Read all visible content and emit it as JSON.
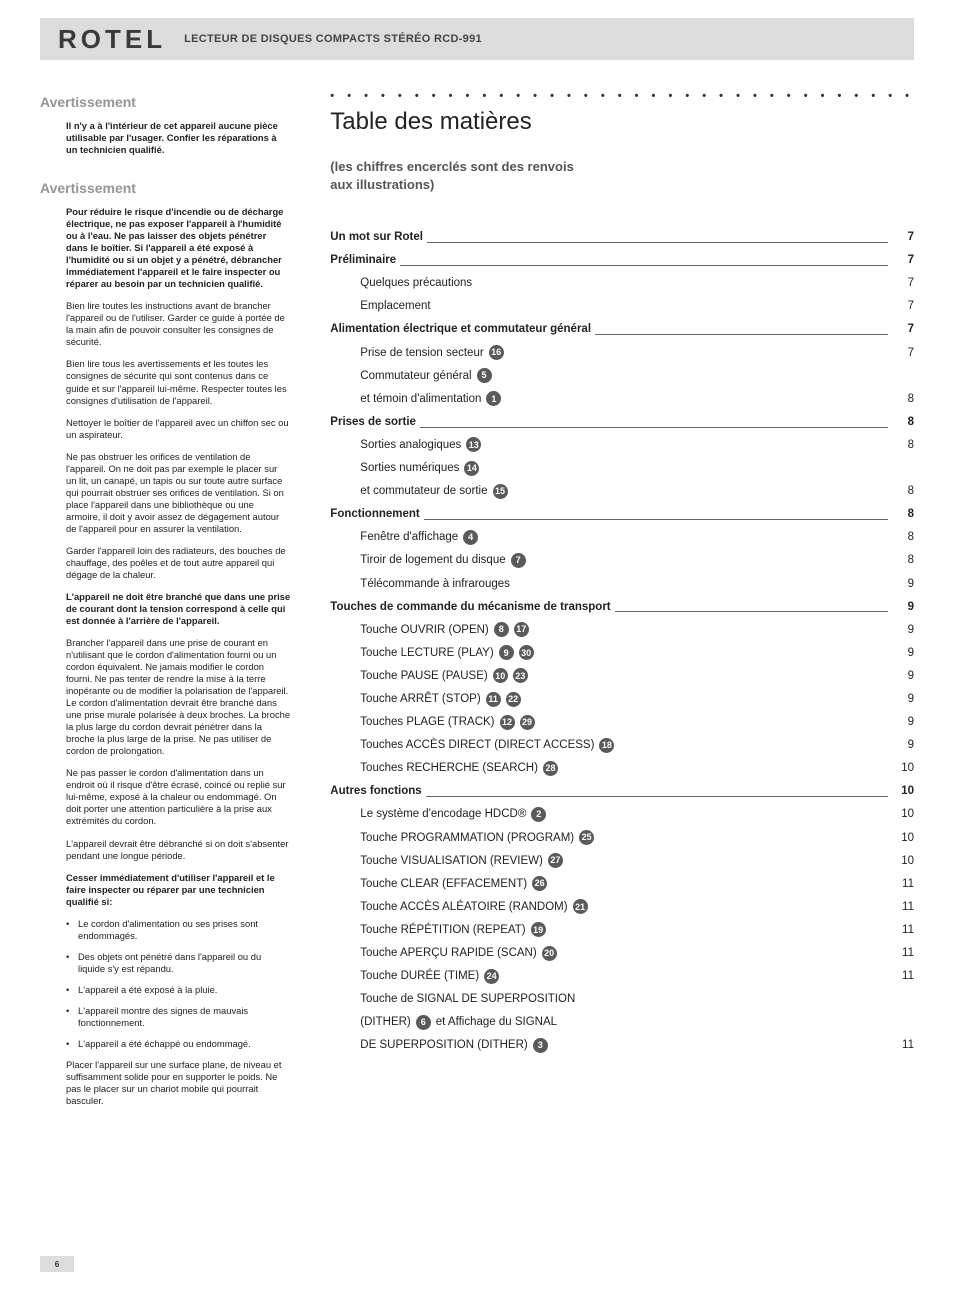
{
  "header": {
    "brand": "ROTEL",
    "subtitle": "LECTEUR DE DISQUES COMPACTS STÉRÉO   RCD-991"
  },
  "left": {
    "warn1_head": "Avertissement",
    "warn1_text": "Il n'y a à l'intérieur de cet appareil aucune pièce utilisable par l'usager. Confier les réparations à un technicien qualifié.",
    "warn2_head": "Avertissement",
    "p1": "Pour réduire le risque d'incendie ou de décharge électrique, ne pas exposer l'appareil à l'humidité ou à l'eau. Ne pas laisser des objets pénétrer dans le boîtier. Si l'appareil a été exposé à l'humidité ou si un objet y a pénétré, débrancher immédiatement l'appareil et le faire inspecter ou réparer au besoin par un technicien qualifié.",
    "p2": "Bien lire toutes les instructions avant de brancher l'appareil ou de l'utiliser. Garder ce guide à portée de la main afin de pouvoir consulter les consignes de sécurité.",
    "p3": "Bien lire tous les avertissements et les toutes les consignes de sécurité qui sont contenus dans ce guide et sur l'appareil lui-même. Respecter toutes les consignes d'utilisation de l'appareil.",
    "p4": "Nettoyer le boîtier de l'appareil avec un chiffon sec ou un aspirateur.",
    "p5": "Ne pas obstruer les orifices de ventilation de l'appareil. On ne doit pas par exemple le placer sur un lit, un canapé, un tapis ou sur toute autre surface qui pourrait obstruer ses orifices de ventilation. Si on place l'appareil dans une bibliothèque ou une armoire, il doit y avoir assez de dégagement autour de l'appareil pour en assurer la ventilation.",
    "p6": "Garder l'appareil loin des radiateurs, des bouches de chauffage, des poêles et de tout autre appareil qui dégage de la chaleur.",
    "p7": "L'appareil ne doit être branché que dans une prise de courant dont la tension correspond à celle qui est donnée à l'arrière de l'appareil.",
    "p8": "Brancher l'appareil dans une prise de courant en n'utilisant que le cordon d'alimentation fourni ou un cordon équivalent. Ne jamais modifier le cordon fourni. Ne pas tenter de rendre la mise à la terre inopérante ou de modifier la polarisation de l'appareil. Le cordon d'alimentation devrait être branché dans une prise murale polarisée à deux broches. La broche la plus large du cordon devrait pénétrer dans la broche la plus large de la prise. Ne pas utiliser de cordon de prolongation.",
    "p9": "Ne pas passer le cordon d'alimentation dans un endroit où il risque d'être écrasé, coincé ou replié sur lui-même, exposé à la chaleur ou endommagé. On doit porter une attention particulière à la prise aux extrémités du cordon.",
    "p10": "L'appareil devrait être débranché si on doit s'absenter pendant une longue période.",
    "p11": "Cesser immédiatement d'utiliser l'appareil et le faire inspecter ou réparer par une technicien qualifié si:",
    "b1": "Le cordon d'alimentation ou ses prises sont endommagés.",
    "b2": "Des objets ont pénétré dans l'appareil ou du liquide s'y est répandu.",
    "b3": "L'appareil a été exposé à la pluie.",
    "b4": "L'appareil montre des signes de mauvais fonctionnement.",
    "b5": "L'appareil a été échappé ou endommagé.",
    "p12": "Placer l'appareil sur une surface plane, de niveau et suffisamment solide pour en supporter le poids. Ne pas le placer sur un chariot mobile qui pourrait basculer."
  },
  "right": {
    "dots": "• • • • • • • • • • • • • • • • • • • • • • • • • • • • • • • • • • •",
    "title": "Table des matières",
    "note1": "(les chiffres encerclés sont des renvois",
    "note2": "aux illustrations)",
    "toc": [
      {
        "type": "section",
        "label": "Un mot sur Rotel",
        "page": "7",
        "refs": []
      },
      {
        "type": "section",
        "label": "Préliminaire",
        "page": "7",
        "refs": []
      },
      {
        "type": "sub",
        "label": "Quelques précautions",
        "page": "7",
        "refs": []
      },
      {
        "type": "sub",
        "label": "Emplacement",
        "page": "7",
        "refs": []
      },
      {
        "type": "section",
        "label": "Alimentation électrique et commutateur général",
        "page": "7",
        "refs": []
      },
      {
        "type": "sub",
        "label": "Prise de tension secteur",
        "page": "7",
        "refs": [
          "16"
        ]
      },
      {
        "type": "sub",
        "label": "Commutateur général",
        "page": "",
        "refs": [
          "5"
        ]
      },
      {
        "type": "sub",
        "label": "et témoin d'alimentation",
        "page": "8",
        "refs": [
          "1"
        ]
      },
      {
        "type": "section",
        "label": "Prises de sortie",
        "page": "8",
        "refs": []
      },
      {
        "type": "sub",
        "label": "Sorties analogiques",
        "page": "8",
        "refs": [
          "13"
        ]
      },
      {
        "type": "sub",
        "label": "Sorties numériques",
        "page": "",
        "refs": [
          "14"
        ]
      },
      {
        "type": "sub",
        "label": "et commutateur de sortie",
        "page": "8",
        "refs": [
          "15"
        ]
      },
      {
        "type": "section",
        "label": "Fonctionnement",
        "page": "8",
        "refs": []
      },
      {
        "type": "sub",
        "label": "Fenêtre d'affichage",
        "page": "8",
        "refs": [
          "4"
        ]
      },
      {
        "type": "sub",
        "label": "Tiroir de logement du disque",
        "page": "8",
        "refs": [
          "7"
        ]
      },
      {
        "type": "sub",
        "label": "Télécommande à infrarouges",
        "page": "9",
        "refs": []
      },
      {
        "type": "section",
        "label": "Touches de commande du mécanisme de transport",
        "page": "9",
        "refs": []
      },
      {
        "type": "sub",
        "label": "Touche OUVRIR (OPEN)",
        "page": "9",
        "refs": [
          "8",
          "17"
        ]
      },
      {
        "type": "sub",
        "label": "Touche LECTURE (PLAY)",
        "page": "9",
        "refs": [
          "9",
          "30"
        ]
      },
      {
        "type": "sub",
        "label": "Touche PAUSE (PAUSE)",
        "page": "9",
        "refs": [
          "10",
          "23"
        ]
      },
      {
        "type": "sub",
        "label": "Touche ARRÊT (STOP)",
        "page": "9",
        "refs": [
          "11",
          "22"
        ]
      },
      {
        "type": "sub",
        "label": "Touches PLAGE (TRACK)",
        "page": "9",
        "refs": [
          "12",
          "29"
        ]
      },
      {
        "type": "sub",
        "label": "Touches ACCÈS DIRECT (DIRECT ACCESS)",
        "page": "9",
        "refs": [
          "18"
        ]
      },
      {
        "type": "sub",
        "label": "Touches RECHERCHE (SEARCH)",
        "page": "10",
        "refs": [
          "28"
        ]
      },
      {
        "type": "section",
        "label": "Autres fonctions",
        "page": "10",
        "refs": []
      },
      {
        "type": "sub",
        "label": "Le système d'encodage HDCD®",
        "page": "10",
        "refs": [
          "2"
        ]
      },
      {
        "type": "sub",
        "label": "Touche PROGRAMMATION (PROGRAM)",
        "page": "10",
        "refs": [
          "25"
        ]
      },
      {
        "type": "sub",
        "label": "Touche VISUALISATION (REVIEW)",
        "page": "10",
        "refs": [
          "27"
        ]
      },
      {
        "type": "sub",
        "label": "Touche CLEAR (EFFACEMENT)",
        "page": "11",
        "refs": [
          "26"
        ]
      },
      {
        "type": "sub",
        "label": "Touche ACCÈS ALÉATOIRE (RANDOM)",
        "page": "11",
        "refs": [
          "21"
        ]
      },
      {
        "type": "sub",
        "label": "Touche RÉPÉTITION (REPEAT)",
        "page": "11",
        "refs": [
          "19"
        ]
      },
      {
        "type": "sub",
        "label": "Touche APERÇU RAPIDE (SCAN)",
        "page": "11",
        "refs": [
          "20"
        ]
      },
      {
        "type": "sub",
        "label": "Touche DURÉE (TIME)",
        "page": "11",
        "refs": [
          "24"
        ]
      },
      {
        "type": "dither",
        "page": "11"
      }
    ]
  },
  "dither": {
    "line1_a": "Touche de SIGNAL DE SUPERPOSITION",
    "line2_a": "(DITHER)",
    "line2_b": "et Affichage du SIGNAL",
    "line3_a": "DE SUPERPOSITION (DITHER)",
    "ref1": "6",
    "ref2": "3"
  },
  "footer": {
    "page_number": "6"
  }
}
